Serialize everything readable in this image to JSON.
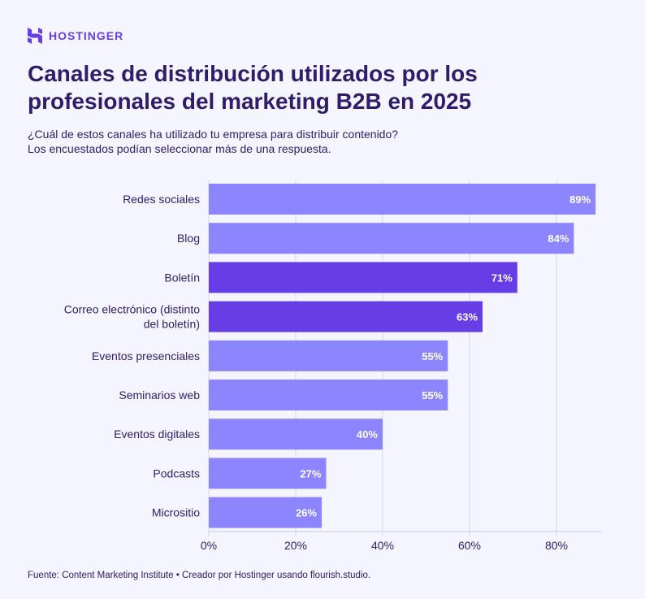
{
  "brand": {
    "name": "HOSTINGER",
    "color": "#673de6"
  },
  "header": {
    "title": "Canales de distribución utilizados por los profesionales del marketing B2B en 2025",
    "subtitle_line1": "¿Cuál de estos canales ha utilizado tu empresa para distribuir contenido?",
    "subtitle_line2": "Los encuestados podían seleccionar más de una respuesta."
  },
  "chart_data": {
    "type": "bar",
    "orientation": "horizontal",
    "categories": [
      "Redes sociales",
      "Blog",
      "Boletín",
      "Correo electrónico (distinto del boletín)",
      "Eventos presenciales",
      "Seminarios web",
      "Eventos digitales",
      "Podcasts",
      "Micrositio"
    ],
    "values": [
      89,
      84,
      71,
      63,
      55,
      55,
      40,
      27,
      26
    ],
    "data_labels": [
      "89%",
      "84%",
      "71%",
      "63%",
      "55%",
      "55%",
      "40%",
      "27%",
      "26%"
    ],
    "highlighted": [
      false,
      false,
      true,
      true,
      false,
      false,
      false,
      false,
      false
    ],
    "colors": {
      "default": "#8c85ff",
      "highlight": "#673de6",
      "grid": "#d3d7ee",
      "background": "#f4f5ff"
    },
    "xlim": [
      0,
      90
    ],
    "x_ticks": [
      "0%",
      "20%",
      "40%",
      "60%",
      "80%"
    ],
    "x_tick_values": [
      0,
      20,
      40,
      60,
      80
    ],
    "grid": true
  },
  "footer": {
    "source": "Fuente: Content Marketing Institute • Creador por Hostinger usando flourish.studio."
  }
}
